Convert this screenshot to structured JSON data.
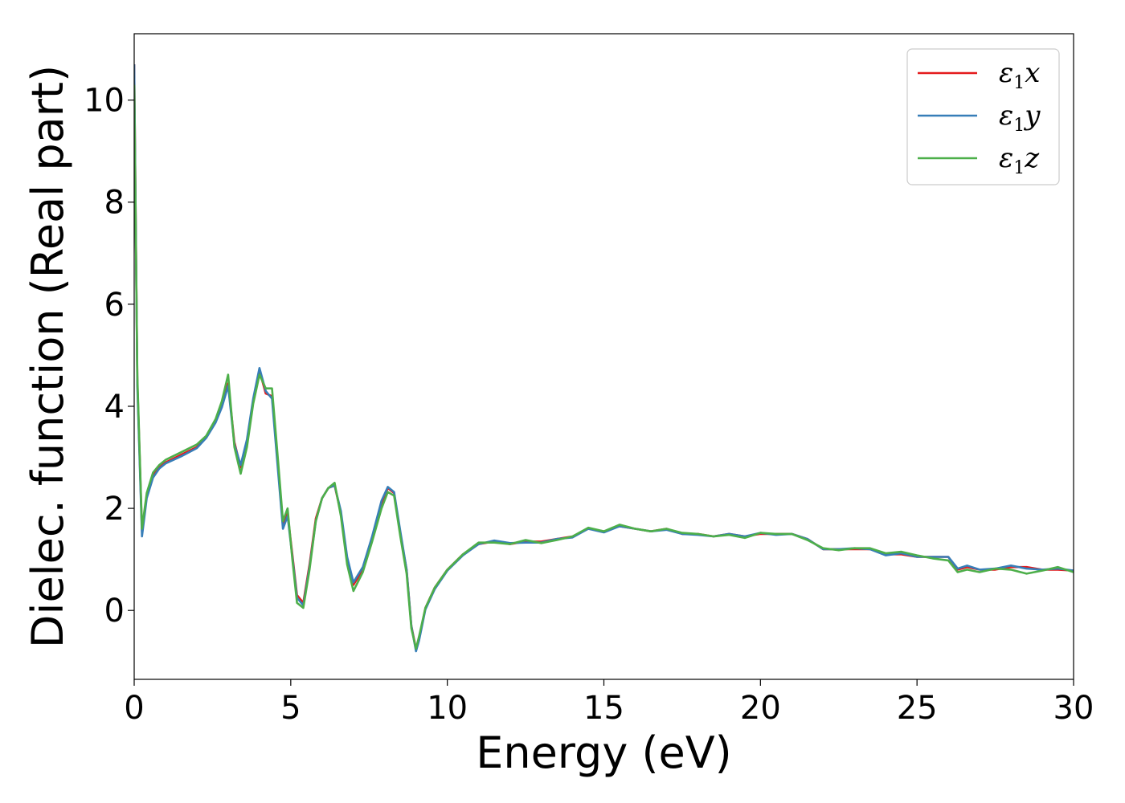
{
  "chart_data": {
    "type": "line",
    "xlabel": "Energy (eV)",
    "ylabel": "Dielec. function (Real part)",
    "xlim": [
      0,
      30
    ],
    "ylim": [
      -1.35,
      11.3
    ],
    "xticks": [
      0,
      5,
      10,
      15,
      20,
      25,
      30
    ],
    "xtick_labels": [
      "0",
      "5",
      "10",
      "15",
      "20",
      "25",
      "30"
    ],
    "yticks": [
      0,
      2,
      4,
      6,
      8,
      10
    ],
    "ytick_labels": [
      "0",
      "2",
      "4",
      "6",
      "8",
      "10"
    ],
    "grid": false,
    "legend_position": "top-right",
    "series": [
      {
        "name": "ε1x",
        "symbol": "ε",
        "subscript": "1",
        "axis": "x",
        "color": "#e41a1c",
        "x": [
          0,
          0.1,
          0.25,
          0.4,
          0.6,
          0.8,
          1.0,
          1.5,
          2.0,
          2.3,
          2.6,
          2.8,
          3.0,
          3.2,
          3.4,
          3.6,
          3.8,
          4.0,
          4.2,
          4.4,
          4.6,
          4.75,
          4.9,
          5.05,
          5.2,
          5.4,
          5.6,
          5.8,
          6.0,
          6.2,
          6.4,
          6.6,
          6.8,
          7.0,
          7.3,
          7.6,
          7.9,
          8.1,
          8.3,
          8.5,
          8.7,
          8.85,
          9.0,
          9.1,
          9.3,
          9.6,
          10.0,
          10.5,
          11.0,
          11.5,
          12.0,
          12.5,
          13.0,
          13.5,
          14.0,
          14.5,
          15.0,
          15.5,
          16.0,
          16.5,
          17.0,
          17.5,
          18.0,
          18.5,
          19.0,
          19.5,
          20.0,
          20.5,
          21.0,
          21.5,
          22.0,
          22.5,
          23.0,
          23.5,
          24.0,
          24.5,
          25.0,
          25.5,
          26.0,
          26.3,
          26.6,
          27.0,
          27.5,
          28.0,
          28.5,
          29.0,
          29.5,
          30.0
        ],
        "y": [
          10.7,
          4.5,
          1.55,
          2.25,
          2.65,
          2.8,
          2.9,
          3.05,
          3.2,
          3.4,
          3.7,
          4.0,
          4.45,
          3.3,
          2.8,
          3.3,
          4.1,
          4.7,
          4.25,
          4.2,
          2.8,
          1.7,
          1.9,
          1.1,
          0.3,
          0.15,
          0.9,
          1.8,
          2.2,
          2.4,
          2.45,
          1.9,
          1.0,
          0.5,
          0.8,
          1.4,
          2.1,
          2.4,
          2.3,
          1.5,
          0.8,
          -0.3,
          -0.75,
          -0.55,
          0.05,
          0.45,
          0.8,
          1.1,
          1.3,
          1.35,
          1.3,
          1.35,
          1.35,
          1.4,
          1.45,
          1.6,
          1.55,
          1.65,
          1.6,
          1.55,
          1.6,
          1.5,
          1.5,
          1.45,
          1.5,
          1.45,
          1.5,
          1.5,
          1.5,
          1.4,
          1.2,
          1.2,
          1.2,
          1.2,
          1.1,
          1.1,
          1.05,
          1.05,
          1.05,
          0.8,
          0.85,
          0.8,
          0.8,
          0.85,
          0.85,
          0.8,
          0.8,
          0.78
        ]
      },
      {
        "name": "ε1y",
        "symbol": "ε",
        "subscript": "1",
        "axis": "y",
        "color": "#377eb8",
        "x": [
          0,
          0.1,
          0.25,
          0.4,
          0.6,
          0.8,
          1.0,
          1.5,
          2.0,
          2.3,
          2.6,
          2.8,
          3.0,
          3.2,
          3.4,
          3.6,
          3.8,
          4.0,
          4.2,
          4.4,
          4.6,
          4.75,
          4.9,
          5.05,
          5.2,
          5.4,
          5.6,
          5.8,
          6.0,
          6.2,
          6.4,
          6.6,
          6.8,
          7.0,
          7.3,
          7.6,
          7.9,
          8.1,
          8.3,
          8.5,
          8.7,
          8.85,
          9.0,
          9.1,
          9.3,
          9.6,
          10.0,
          10.5,
          11.0,
          11.5,
          12.0,
          12.5,
          13.0,
          13.5,
          14.0,
          14.5,
          15.0,
          15.5,
          16.0,
          16.5,
          17.0,
          17.5,
          18.0,
          18.5,
          19.0,
          19.5,
          20.0,
          20.5,
          21.0,
          21.5,
          22.0,
          22.5,
          23.0,
          23.5,
          24.0,
          24.5,
          25.0,
          25.5,
          26.0,
          26.3,
          26.6,
          27.0,
          27.5,
          28.0,
          28.5,
          29.0,
          29.5,
          30.0
        ],
        "y": [
          10.7,
          4.4,
          1.45,
          2.2,
          2.6,
          2.78,
          2.88,
          3.02,
          3.18,
          3.38,
          3.68,
          3.98,
          4.4,
          3.25,
          2.85,
          3.35,
          4.15,
          4.75,
          4.3,
          4.15,
          2.7,
          1.6,
          1.85,
          1.05,
          0.25,
          0.1,
          0.85,
          1.75,
          2.2,
          2.4,
          2.45,
          1.95,
          1.05,
          0.55,
          0.85,
          1.45,
          2.15,
          2.42,
          2.32,
          1.55,
          0.8,
          -0.3,
          -0.8,
          -0.58,
          0.02,
          0.42,
          0.78,
          1.08,
          1.3,
          1.37,
          1.32,
          1.33,
          1.33,
          1.4,
          1.43,
          1.6,
          1.53,
          1.65,
          1.6,
          1.55,
          1.58,
          1.5,
          1.48,
          1.45,
          1.5,
          1.45,
          1.52,
          1.48,
          1.5,
          1.4,
          1.2,
          1.2,
          1.22,
          1.2,
          1.08,
          1.12,
          1.05,
          1.05,
          1.05,
          0.82,
          0.88,
          0.8,
          0.82,
          0.88,
          0.82,
          0.8,
          0.82,
          0.78
        ]
      },
      {
        "name": "ε1z",
        "symbol": "ε",
        "subscript": "1",
        "axis": "z",
        "color": "#4daf4a",
        "x": [
          0,
          0.1,
          0.25,
          0.4,
          0.6,
          0.8,
          1.0,
          1.5,
          2.0,
          2.3,
          2.6,
          2.8,
          3.0,
          3.2,
          3.4,
          3.6,
          3.8,
          4.0,
          4.2,
          4.4,
          4.6,
          4.75,
          4.9,
          5.05,
          5.2,
          5.4,
          5.6,
          5.8,
          6.0,
          6.2,
          6.4,
          6.6,
          6.8,
          7.0,
          7.3,
          7.6,
          7.9,
          8.1,
          8.3,
          8.5,
          8.7,
          8.85,
          9.0,
          9.1,
          9.3,
          9.6,
          10.0,
          10.5,
          11.0,
          11.5,
          12.0,
          12.5,
          13.0,
          13.5,
          14.0,
          14.5,
          15.0,
          15.5,
          16.0,
          16.5,
          17.0,
          17.5,
          18.0,
          18.5,
          19.0,
          19.5,
          20.0,
          20.5,
          21.0,
          21.5,
          22.0,
          22.5,
          23.0,
          23.5,
          24.0,
          24.5,
          25.0,
          25.5,
          26.0,
          26.3,
          26.6,
          27.0,
          27.5,
          28.0,
          28.5,
          29.0,
          29.5,
          30.0
        ],
        "y": [
          10.3,
          4.6,
          1.6,
          2.3,
          2.7,
          2.85,
          2.95,
          3.1,
          3.25,
          3.42,
          3.75,
          4.1,
          4.62,
          3.2,
          2.68,
          3.2,
          4.05,
          4.62,
          4.35,
          4.35,
          2.9,
          1.75,
          2.0,
          1.0,
          0.15,
          0.05,
          0.8,
          1.75,
          2.2,
          2.4,
          2.5,
          1.85,
          0.9,
          0.38,
          0.75,
          1.35,
          2.0,
          2.32,
          2.25,
          1.45,
          0.72,
          -0.35,
          -0.75,
          -0.5,
          0.05,
          0.45,
          0.8,
          1.1,
          1.33,
          1.33,
          1.3,
          1.38,
          1.32,
          1.38,
          1.45,
          1.62,
          1.55,
          1.68,
          1.6,
          1.55,
          1.6,
          1.52,
          1.5,
          1.45,
          1.48,
          1.42,
          1.52,
          1.5,
          1.5,
          1.38,
          1.22,
          1.18,
          1.22,
          1.22,
          1.12,
          1.15,
          1.08,
          1.02,
          0.98,
          0.75,
          0.8,
          0.75,
          0.82,
          0.8,
          0.72,
          0.78,
          0.85,
          0.75
        ]
      }
    ]
  }
}
